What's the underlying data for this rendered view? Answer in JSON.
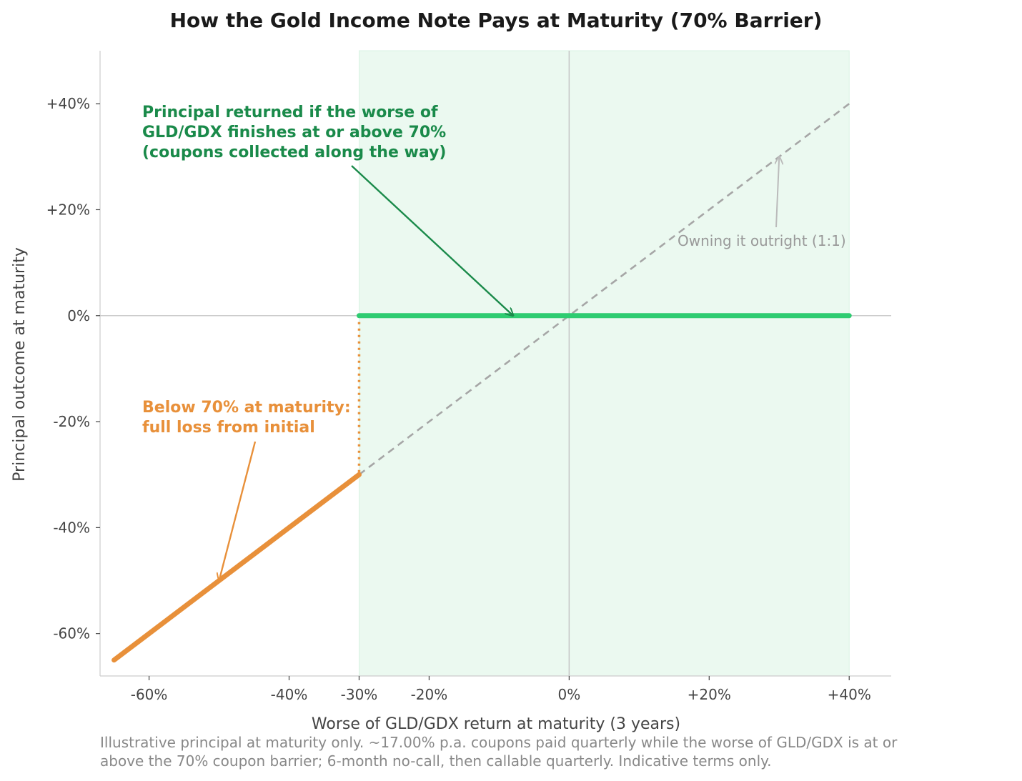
{
  "chart_data": {
    "type": "line",
    "title": "How the Gold Income Note Pays at Maturity  (70% Barrier)",
    "xlabel": "Worse of GLD/GDX return at maturity (3 years)",
    "ylabel": "Principal outcome at maturity",
    "xlim": [
      -67,
      46
    ],
    "ylim": [
      -68,
      50
    ],
    "x_ticks": [
      -60,
      -40,
      -30,
      -20,
      0,
      20,
      40
    ],
    "x_tick_labels": [
      "-60%",
      "-40%",
      "-30%",
      "-20%",
      "0%",
      "+20%",
      "+40%"
    ],
    "y_ticks": [
      40,
      20,
      0,
      -20,
      -40,
      -60
    ],
    "y_tick_labels": [
      "+40%",
      "+20%",
      "0%",
      "-20%",
      "-40%",
      "-60%"
    ],
    "barrier_x": -30,
    "shaded_region_x": [
      -30,
      40
    ],
    "series": [
      {
        "key": "loss",
        "x": [
          -65,
          -30
        ],
        "y": [
          -65,
          -30
        ],
        "color": "#e8903a",
        "style": "solid"
      },
      {
        "key": "protected",
        "x": [
          -30,
          40
        ],
        "y": [
          0,
          0
        ],
        "color": "#2ecc71",
        "style": "solid"
      },
      {
        "key": "outright",
        "x": [
          -30,
          40
        ],
        "y": [
          -30,
          40
        ],
        "color": "#a6a6a6",
        "style": "dashed"
      },
      {
        "key": "barrier-drop",
        "x": [
          -30,
          -30
        ],
        "y": [
          0,
          -30
        ],
        "color": "#e8903a",
        "style": "dotted"
      }
    ],
    "annotations": {
      "green": {
        "lines": [
          "Principal returned if the worse of",
          "GLD/GDX finishes at or above 70%",
          "(coupons collected along the way)"
        ],
        "color": "#1a8a4a",
        "arrow_to": [
          -8,
          0
        ]
      },
      "orange": {
        "lines": [
          "Below 70% at maturity:",
          "full loss from initial"
        ],
        "color": "#e8903a",
        "arrow_to": [
          -50,
          -50
        ]
      },
      "gray": {
        "lines": [
          "Owning it outright (1:1)"
        ],
        "color": "#999999",
        "arrow_to": [
          30,
          30
        ]
      }
    },
    "footnote": [
      "Illustrative principal at maturity only. ~17.00% p.a. coupons paid quarterly while the worse of GLD/GDX is at or",
      "above the 70% coupon barrier; 6-month no-call, then callable quarterly. Indicative terms only."
    ]
  }
}
